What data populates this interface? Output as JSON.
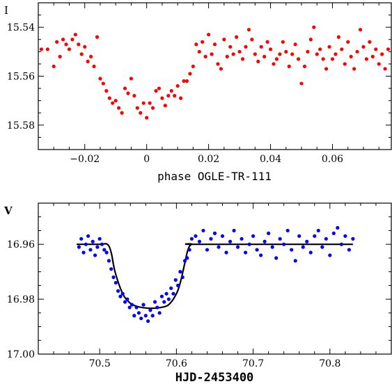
{
  "chart_data": [
    {
      "type": "scatter",
      "xlabel": "phase OGLE-TR-111",
      "ylabel": "I",
      "xlim": [
        -0.035,
        0.079
      ],
      "ylim": [
        15.59,
        15.53
      ],
      "y_inverted": true,
      "xticks_major": [
        "-0.02",
        "0",
        "0.02",
        "0.04",
        "0.06"
      ],
      "yticks_major": [
        "15.54",
        "15.56",
        "15.58"
      ],
      "marker_color": "#ff0000",
      "series": [
        {
          "x": [
            -0.034,
            -0.032,
            -0.03,
            -0.029,
            -0.028,
            -0.027,
            -0.026,
            -0.025,
            -0.024,
            -0.023,
            -0.022,
            -0.021,
            -0.02,
            -0.019,
            -0.018,
            -0.017,
            -0.016,
            -0.015,
            -0.014,
            -0.013,
            -0.012,
            -0.011,
            -0.01,
            -0.009,
            -0.008,
            -0.007,
            -0.006,
            -0.005,
            -0.004,
            -0.003,
            -0.002,
            -0.001,
            0.0,
            0.001,
            0.002,
            0.003,
            0.004,
            0.005,
            0.006,
            0.007,
            0.008,
            0.009,
            0.01,
            0.011,
            0.012,
            0.013,
            0.014,
            0.015,
            0.016,
            0.017,
            0.018,
            0.019,
            0.02,
            0.021,
            0.022,
            0.023,
            0.024,
            0.025,
            0.026,
            0.027,
            0.028,
            0.029,
            0.03,
            0.031,
            0.032,
            0.033,
            0.034,
            0.035,
            0.036,
            0.037,
            0.038,
            0.039,
            0.04,
            0.041,
            0.042,
            0.043,
            0.044,
            0.045,
            0.046,
            0.047,
            0.048,
            0.049,
            0.05,
            0.051,
            0.052,
            0.053,
            0.054,
            0.055,
            0.056,
            0.057,
            0.058,
            0.059,
            0.06,
            0.061,
            0.062,
            0.063,
            0.064,
            0.065,
            0.066,
            0.067,
            0.068,
            0.069,
            0.07,
            0.071,
            0.072,
            0.073,
            0.074,
            0.075,
            0.076,
            0.077,
            0.078
          ],
          "y": [
            15.549,
            15.549,
            15.556,
            15.546,
            15.552,
            15.545,
            15.547,
            15.549,
            15.545,
            15.543,
            15.547,
            15.551,
            15.548,
            15.554,
            15.552,
            15.556,
            15.544,
            15.561,
            15.563,
            15.566,
            15.569,
            15.571,
            15.57,
            15.573,
            15.575,
            15.565,
            15.567,
            15.561,
            15.568,
            15.573,
            15.575,
            15.571,
            15.577,
            15.571,
            15.573,
            15.566,
            15.565,
            15.569,
            15.572,
            15.568,
            15.566,
            15.568,
            15.564,
            15.569,
            15.562,
            15.562,
            15.559,
            15.556,
            15.547,
            15.55,
            15.546,
            15.552,
            15.543,
            15.551,
            15.547,
            15.555,
            15.557,
            15.545,
            15.552,
            15.548,
            15.551,
            15.544,
            15.55,
            15.553,
            15.548,
            15.541,
            15.545,
            15.551,
            15.554,
            15.548,
            15.552,
            15.546,
            15.549,
            15.555,
            15.553,
            15.551,
            15.546,
            15.55,
            15.556,
            15.551,
            15.547,
            15.553,
            15.563,
            15.556,
            15.55,
            15.545,
            15.54,
            15.551,
            15.549,
            15.553,
            15.557,
            15.548,
            15.553,
            15.551,
            15.544,
            15.549,
            15.555,
            15.546,
            15.552,
            15.557,
            15.55,
            15.541,
            15.548,
            15.553,
            15.546,
            15.552,
            15.549,
            15.555,
            15.551,
            15.557,
            15.549
          ]
        }
      ]
    },
    {
      "type": "scatter",
      "xlabel": "HJD-2453400",
      "ylabel": "V",
      "xlim": [
        70.42,
        70.88
      ],
      "ylim": [
        17.0,
        16.945
      ],
      "y_inverted": true,
      "xticks_major": [
        "70.5",
        "70.6",
        "70.7",
        "70.8"
      ],
      "yticks_major": [
        "16.96",
        "16.98",
        "17.00"
      ],
      "marker_color": "#0000ff",
      "model_color": "#000000",
      "series": [
        {
          "x": [
            70.473,
            70.476,
            70.479,
            70.482,
            70.485,
            70.488,
            70.491,
            70.494,
            70.497,
            70.5,
            70.503,
            70.506,
            70.509,
            70.512,
            70.515,
            70.518,
            70.521,
            70.524,
            70.527,
            70.53,
            70.533,
            70.536,
            70.539,
            70.542,
            70.545,
            70.548,
            70.551,
            70.554,
            70.557,
            70.56,
            70.563,
            70.566,
            70.569,
            70.572,
            70.575,
            70.578,
            70.581,
            70.584,
            70.587,
            70.59,
            70.593,
            70.596,
            70.599,
            70.602,
            70.605,
            70.608,
            70.611,
            70.614,
            70.617,
            70.62,
            70.625,
            70.63,
            70.635,
            70.64,
            70.645,
            70.65,
            70.655,
            70.66,
            70.665,
            70.67,
            70.675,
            70.68,
            70.685,
            70.69,
            70.695,
            70.7,
            70.705,
            70.71,
            70.715,
            70.72,
            70.725,
            70.73,
            70.735,
            70.74,
            70.745,
            70.75,
            70.755,
            70.76,
            70.765,
            70.77,
            70.775,
            70.78,
            70.785,
            70.79,
            70.795,
            70.8,
            70.805,
            70.81,
            70.815,
            70.82,
            70.825,
            70.83
          ],
          "y": [
            16.961,
            16.958,
            16.963,
            16.96,
            16.957,
            16.962,
            16.959,
            16.964,
            16.961,
            16.958,
            16.96,
            16.962,
            16.963,
            16.966,
            16.969,
            16.972,
            16.974,
            16.977,
            16.979,
            16.978,
            16.981,
            16.98,
            16.983,
            16.982,
            16.986,
            16.983,
            16.985,
            16.987,
            16.982,
            16.986,
            16.988,
            16.984,
            16.986,
            16.981,
            16.983,
            16.985,
            16.979,
            16.981,
            16.978,
            16.98,
            16.976,
            16.978,
            16.973,
            16.975,
            16.97,
            16.972,
            16.966,
            16.965,
            16.962,
            16.958,
            16.957,
            16.959,
            16.955,
            16.962,
            16.958,
            16.956,
            16.961,
            16.957,
            16.963,
            16.959,
            16.955,
            16.961,
            16.958,
            16.963,
            16.96,
            16.957,
            16.962,
            16.964,
            16.959,
            16.956,
            16.961,
            16.965,
            16.958,
            16.96,
            16.955,
            16.962,
            16.966,
            16.957,
            16.961,
            16.959,
            16.963,
            16.957,
            16.955,
            16.961,
            16.958,
            16.964,
            16.956,
            16.954,
            16.96,
            16.957,
            16.962,
            16.958
          ]
        }
      ],
      "model_curve": {
        "x": [
          70.47,
          70.5,
          70.51,
          70.515,
          70.52,
          70.53,
          70.54,
          70.55,
          70.56,
          70.57,
          70.58,
          70.59,
          70.6,
          70.605,
          70.61,
          70.615,
          70.62,
          70.63,
          70.83
        ],
        "y": [
          16.96,
          16.96,
          16.96,
          16.963,
          16.97,
          16.978,
          16.9815,
          16.9827,
          16.9832,
          16.9833,
          16.983,
          16.982,
          16.978,
          16.974,
          16.968,
          16.962,
          16.96,
          16.96,
          16.96
        ]
      }
    }
  ]
}
